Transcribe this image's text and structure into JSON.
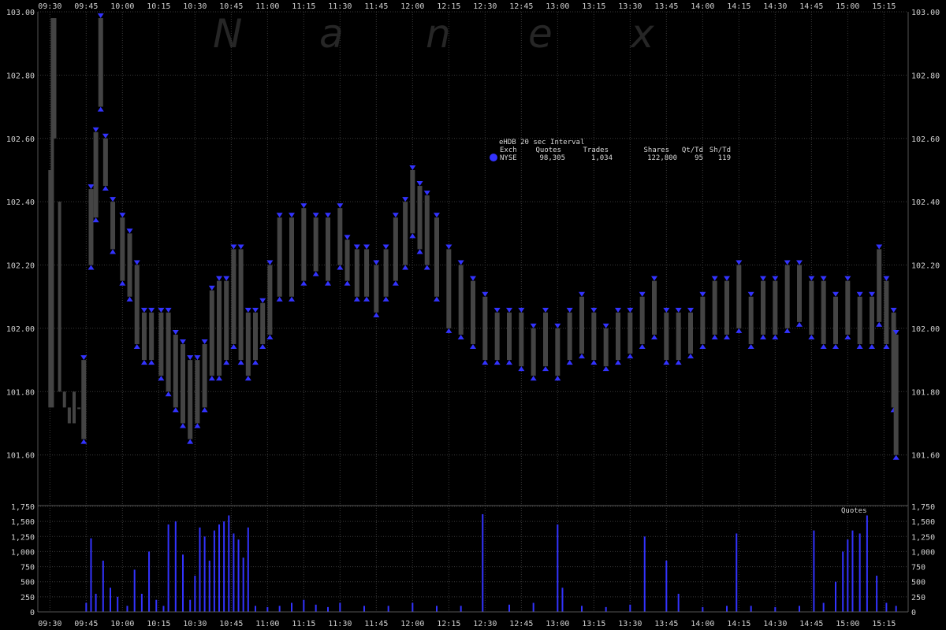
{
  "watermark": [
    "N",
    "a",
    "n",
    "e",
    "x"
  ],
  "chart_data": [
    {
      "type": "scatter",
      "role": "price",
      "legend": {
        "title": "eHDB 20 sec Interval",
        "headers": [
          "Exch",
          "Quotes",
          "Trades",
          "Shares",
          "Qt/Td",
          "Sh/Td"
        ],
        "rows": [
          {
            "exch": "NYSE",
            "quotes": "98,305",
            "trades": "1,034",
            "shares": "122,800",
            "qt_td": "95",
            "sh_td": "119",
            "color": "#3333ff"
          }
        ]
      },
      "x_ticks": [
        "09:30",
        "09:45",
        "10:00",
        "10:15",
        "10:30",
        "10:45",
        "11:00",
        "11:15",
        "11:30",
        "11:45",
        "12:00",
        "12:15",
        "12:30",
        "12:45",
        "13:00",
        "13:15",
        "13:30",
        "13:45",
        "14:00",
        "14:15",
        "14:30",
        "14:45",
        "15:00",
        "15:15"
      ],
      "y_ticks": [
        "101.60",
        "101.80",
        "102.00",
        "102.20",
        "102.40",
        "102.60",
        "102.80",
        "103.00"
      ],
      "ylim": [
        101.44,
        103.0
      ],
      "colors": {
        "quotes": "#3333ff",
        "trade_bars": "#444444",
        "trade_marks": "#ffffff"
      },
      "series": [
        {
          "name": "NYSE",
          "x": [
            "09:44",
            "09:47",
            "09:49",
            "09:51",
            "09:53",
            "09:56",
            "10:00",
            "10:03",
            "10:06",
            "10:09",
            "10:12",
            "10:16",
            "10:19",
            "10:22",
            "10:25",
            "10:28",
            "10:31",
            "10:34",
            "10:37",
            "10:40",
            "10:43",
            "10:46",
            "10:49",
            "10:52",
            "10:55",
            "10:58",
            "11:01",
            "11:05",
            "11:10",
            "11:15",
            "11:20",
            "11:25",
            "11:30",
            "11:33",
            "11:37",
            "11:41",
            "11:45",
            "11:49",
            "11:53",
            "11:57",
            "12:00",
            "12:03",
            "12:06",
            "12:10",
            "12:15",
            "12:20",
            "12:25",
            "12:30",
            "12:35",
            "12:40",
            "12:45",
            "12:50",
            "12:55",
            "13:00",
            "13:05",
            "13:10",
            "13:15",
            "13:20",
            "13:25",
            "13:30",
            "13:35",
            "13:40",
            "13:45",
            "13:50",
            "13:55",
            "14:00",
            "14:05",
            "14:10",
            "14:15",
            "14:20",
            "14:25",
            "14:30",
            "14:35",
            "14:40",
            "14:45",
            "14:50",
            "14:55",
            "15:00",
            "15:05",
            "15:10",
            "15:13",
            "15:16",
            "15:19",
            "15:20"
          ],
          "ask": [
            101.9,
            102.44,
            102.62,
            102.98,
            102.6,
            102.4,
            102.35,
            102.3,
            102.2,
            102.05,
            102.05,
            102.05,
            102.05,
            101.98,
            101.95,
            101.9,
            101.9,
            101.95,
            102.12,
            102.15,
            102.15,
            102.25,
            102.25,
            102.05,
            102.05,
            102.08,
            102.2,
            102.35,
            102.35,
            102.38,
            102.35,
            102.35,
            102.38,
            102.28,
            102.25,
            102.25,
            102.2,
            102.25,
            102.35,
            102.4,
            102.5,
            102.45,
            102.42,
            102.35,
            102.25,
            102.2,
            102.15,
            102.1,
            102.05,
            102.05,
            102.05,
            102.0,
            102.05,
            102.0,
            102.05,
            102.1,
            102.05,
            102.0,
            102.05,
            102.05,
            102.1,
            102.15,
            102.05,
            102.05,
            102.05,
            102.1,
            102.15,
            102.15,
            102.2,
            102.1,
            102.15,
            102.15,
            102.2,
            102.2,
            102.15,
            102.15,
            102.1,
            102.15,
            102.1,
            102.1,
            102.25,
            102.15,
            102.05,
            101.98
          ],
          "bid": [
            101.65,
            102.2,
            102.35,
            102.7,
            102.45,
            102.25,
            102.15,
            102.1,
            101.95,
            101.9,
            101.9,
            101.85,
            101.8,
            101.75,
            101.7,
            101.65,
            101.7,
            101.75,
            101.85,
            101.85,
            101.9,
            101.95,
            101.9,
            101.85,
            101.9,
            101.95,
            101.98,
            102.1,
            102.1,
            102.15,
            102.18,
            102.15,
            102.2,
            102.15,
            102.1,
            102.1,
            102.05,
            102.1,
            102.15,
            102.2,
            102.3,
            102.25,
            102.2,
            102.1,
            102.0,
            101.98,
            101.95,
            101.9,
            101.9,
            101.9,
            101.88,
            101.85,
            101.88,
            101.85,
            101.9,
            101.92,
            101.9,
            101.88,
            101.9,
            101.92,
            101.95,
            101.98,
            101.9,
            101.9,
            101.92,
            101.95,
            101.98,
            101.98,
            102.0,
            101.95,
            101.98,
            101.98,
            102.0,
            102.02,
            101.98,
            101.95,
            101.95,
            101.98,
            101.95,
            101.95,
            102.02,
            101.95,
            101.75,
            101.6
          ]
        },
        {
          "name": "",
          "x": [
            "09:30",
            "09:31",
            "09:32",
            "09:34",
            "09:36",
            "09:38",
            "09:40",
            "09:42"
          ],
          "low": [
            101.75,
            101.75,
            102.6,
            101.8,
            101.75,
            101.7,
            101.7,
            101.75
          ],
          "high": [
            102.5,
            102.98,
            102.98,
            102.4,
            101.8,
            101.75,
            101.8,
            101.75
          ]
        }
      ]
    },
    {
      "type": "bar",
      "role": "volume",
      "label": "Quotes",
      "x_ticks": [
        "09:30",
        "09:45",
        "10:00",
        "10:15",
        "10:30",
        "10:45",
        "11:00",
        "11:15",
        "11:30",
        "11:45",
        "12:00",
        "12:15",
        "12:30",
        "12:45",
        "13:00",
        "13:15",
        "13:30",
        "13:45",
        "14:00",
        "14:15",
        "14:30",
        "14:45",
        "15:00",
        "15:15"
      ],
      "y_ticks": [
        "0",
        "250",
        "500",
        "750",
        "1,000",
        "1,250",
        "1,500",
        "1,750"
      ],
      "ylim": [
        0,
        1750
      ],
      "color": "#3333ff",
      "x": [
        "09:45",
        "09:47",
        "09:49",
        "09:52",
        "09:55",
        "09:58",
        "10:02",
        "10:05",
        "10:08",
        "10:11",
        "10:14",
        "10:17",
        "10:19",
        "10:22",
        "10:25",
        "10:28",
        "10:30",
        "10:32",
        "10:34",
        "10:36",
        "10:38",
        "10:40",
        "10:42",
        "10:44",
        "10:46",
        "10:48",
        "10:50",
        "10:52",
        "10:55",
        "11:00",
        "11:05",
        "11:10",
        "11:15",
        "11:20",
        "11:25",
        "11:30",
        "11:40",
        "11:50",
        "12:00",
        "12:10",
        "12:20",
        "12:29",
        "12:40",
        "12:50",
        "13:00",
        "13:02",
        "13:10",
        "13:20",
        "13:30",
        "13:36",
        "13:45",
        "13:50",
        "14:00",
        "14:10",
        "14:14",
        "14:20",
        "14:30",
        "14:40",
        "14:46",
        "14:50",
        "14:55",
        "14:58",
        "15:00",
        "15:02",
        "15:05",
        "15:08",
        "15:12",
        "15:16",
        "15:20"
      ],
      "values": [
        150,
        1220,
        300,
        850,
        400,
        250,
        100,
        700,
        300,
        1000,
        200,
        100,
        1450,
        1500,
        950,
        200,
        600,
        1400,
        1250,
        850,
        1350,
        1450,
        1500,
        1600,
        1300,
        1200,
        900,
        1400,
        100,
        80,
        100,
        150,
        200,
        120,
        80,
        150,
        100,
        100,
        150,
        100,
        100,
        1620,
        120,
        150,
        1450,
        400,
        100,
        80,
        120,
        1250,
        850,
        300,
        80,
        100,
        1300,
        100,
        80,
        100,
        1350,
        150,
        500,
        1000,
        1200,
        1350,
        1300,
        1600,
        600,
        150,
        100
      ]
    }
  ]
}
